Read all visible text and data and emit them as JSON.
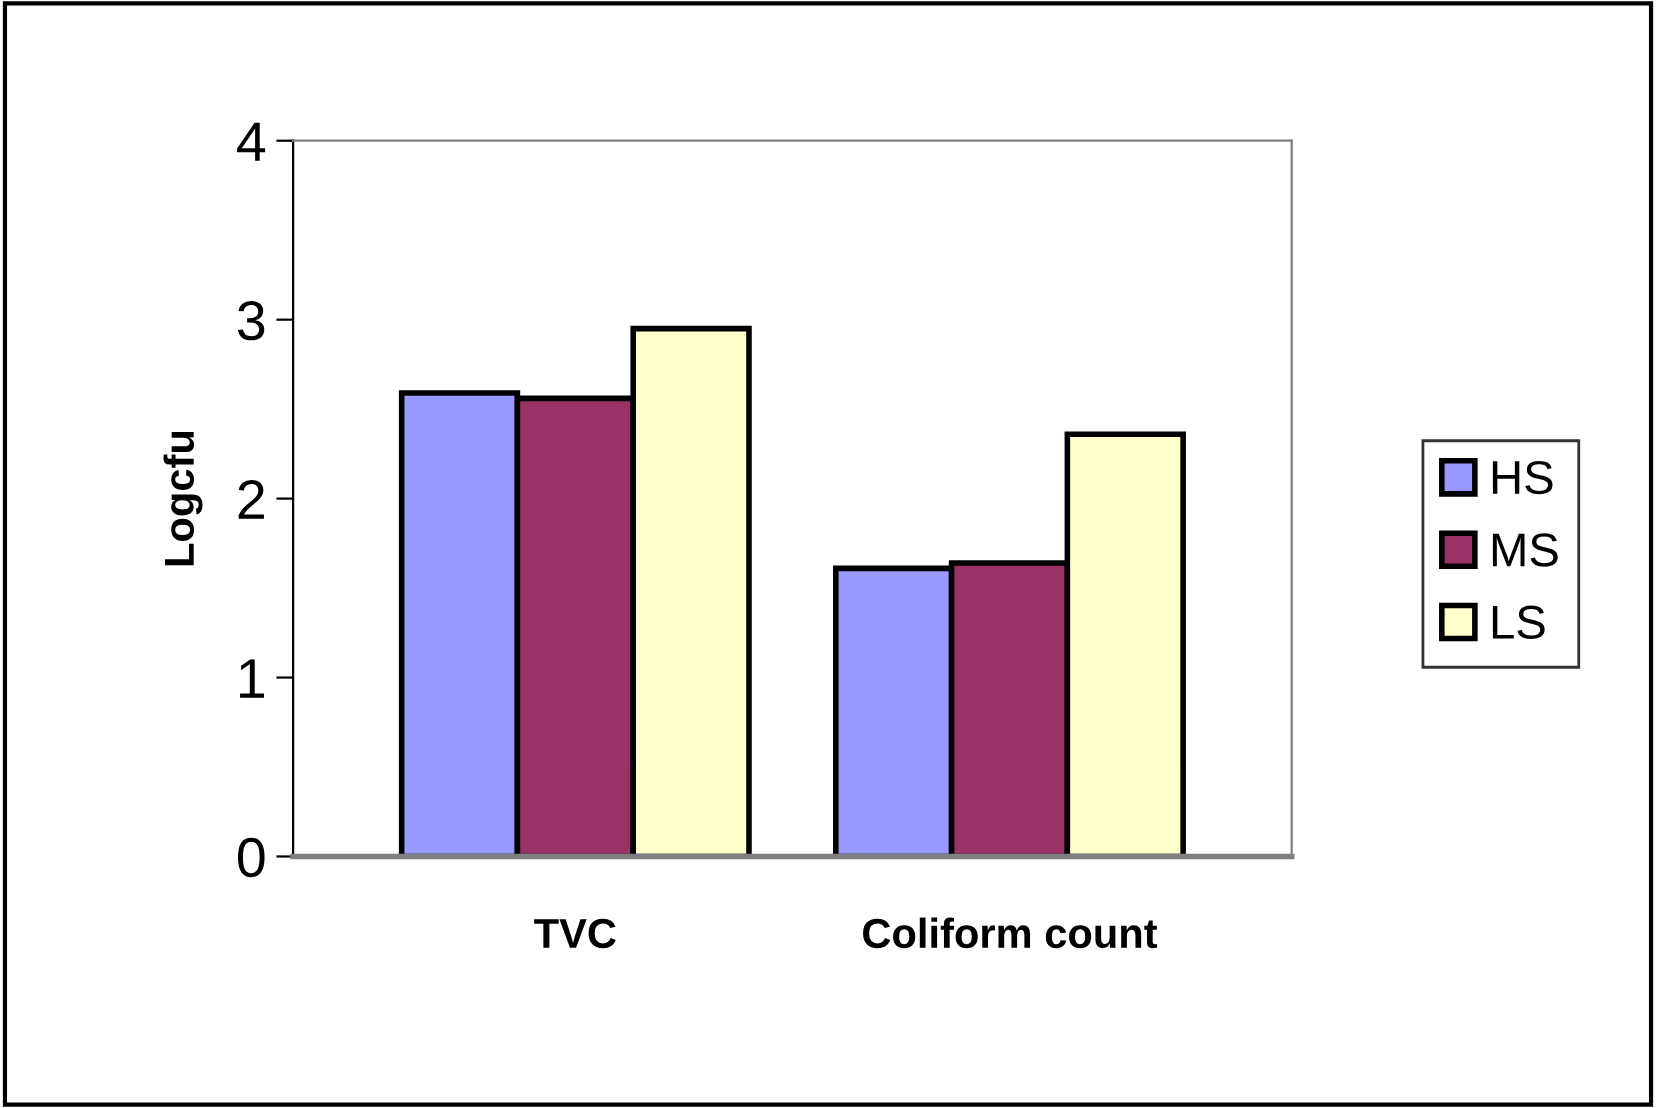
{
  "chart_data": {
    "type": "bar",
    "ylabel": "Logcfu",
    "categories": [
      "TVC",
      "Coliform count"
    ],
    "series": [
      {
        "name": "HS",
        "color": "#9999ff",
        "values": [
          2.59,
          1.61
        ]
      },
      {
        "name": "MS",
        "color": "#993366",
        "values": [
          2.56,
          1.64
        ]
      },
      {
        "name": "LS",
        "color": "#ffffcc",
        "values": [
          2.95,
          2.36
        ]
      }
    ],
    "ylim": [
      0,
      4
    ],
    "yticks": [
      0,
      1,
      2,
      3,
      4
    ],
    "grid": false,
    "legend": "right"
  }
}
